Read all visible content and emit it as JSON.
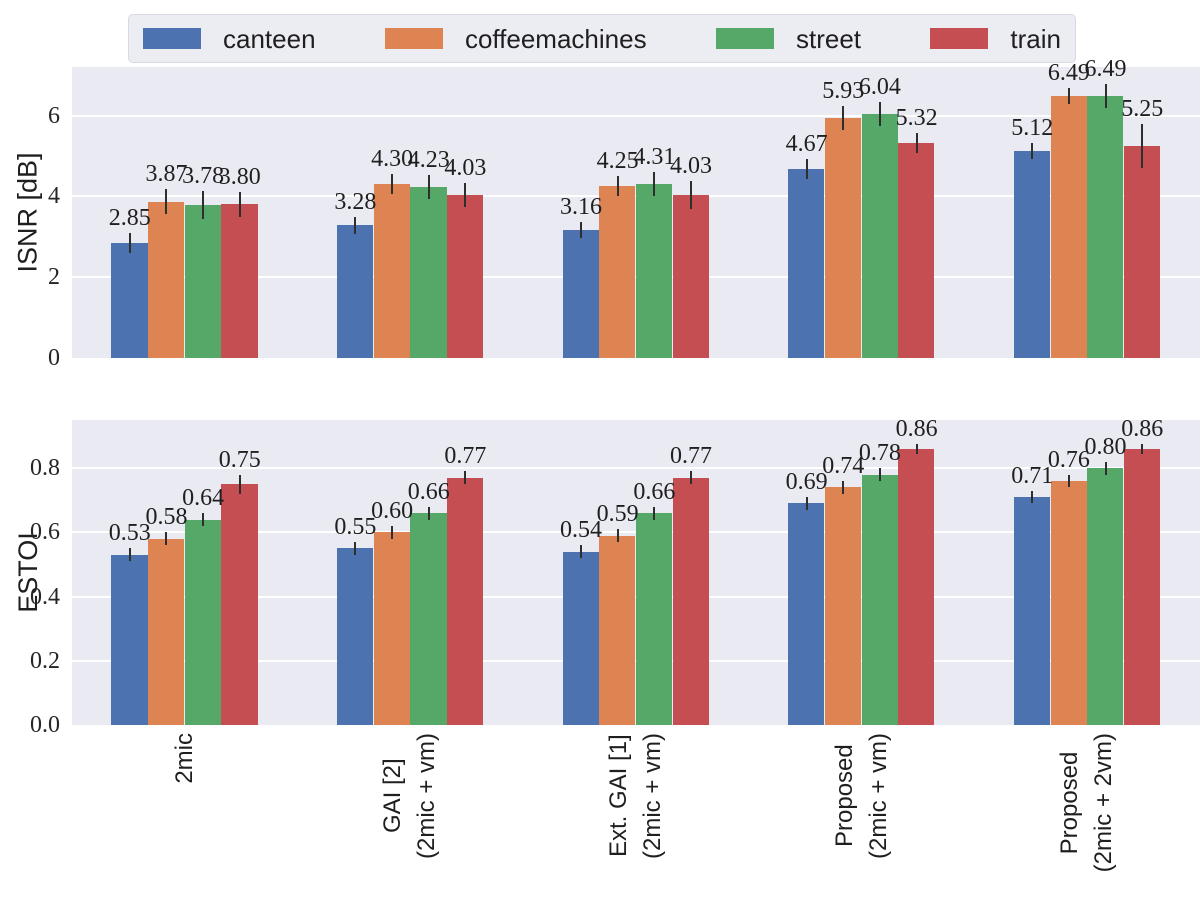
{
  "legend": {
    "items": [
      {
        "label": "canteen",
        "color": "#4C72B0"
      },
      {
        "label": "coffeemachines",
        "color": "#DD8452"
      },
      {
        "label": "street",
        "color": "#55A868"
      },
      {
        "label": "train",
        "color": "#C44E52"
      }
    ]
  },
  "chart_data": [
    {
      "type": "bar",
      "id": "isnr",
      "title": "",
      "ylabel": "ISNR [dB]",
      "ylim": [
        0,
        7.2
      ],
      "grid": true,
      "legend_position": "top",
      "ytick_values": [
        0,
        2,
        4,
        6
      ],
      "ytick_labels": [
        "0",
        "2",
        "4",
        "6"
      ],
      "categories": [
        "2mic",
        "GAI [2]\n(2mic + vm)",
        "Ext. GAI [1]\n(2mic + vm)",
        "Proposed\n(2mic + vm)",
        "Proposed\n(2mic + 2vm)"
      ],
      "bar_label_decimals": 2,
      "series": [
        {
          "name": "canteen",
          "color": "#4C72B0",
          "values": [
            2.85,
            3.28,
            3.16,
            4.67,
            5.12
          ],
          "errors": [
            0.25,
            0.2,
            0.2,
            0.25,
            0.2
          ]
        },
        {
          "name": "coffeemachines",
          "color": "#DD8452",
          "values": [
            3.87,
            4.3,
            4.25,
            5.93,
            6.49
          ],
          "errors": [
            0.3,
            0.25,
            0.25,
            0.3,
            0.2
          ]
        },
        {
          "name": "street",
          "color": "#55A868",
          "values": [
            3.78,
            4.23,
            4.31,
            6.04,
            6.49
          ],
          "errors": [
            0.35,
            0.3,
            0.3,
            0.3,
            0.3
          ]
        },
        {
          "name": "train",
          "color": "#C44E52",
          "values": [
            3.8,
            4.03,
            4.03,
            5.32,
            5.25
          ],
          "errors": [
            0.3,
            0.3,
            0.35,
            0.25,
            0.55
          ]
        }
      ]
    },
    {
      "type": "bar",
      "id": "estoi",
      "title": "",
      "ylabel": "ESTOI",
      "ylim": [
        0,
        0.95
      ],
      "grid": true,
      "legend_position": "top",
      "ytick_values": [
        0,
        0.2,
        0.4,
        0.6,
        0.8
      ],
      "ytick_labels": [
        "0.0",
        "0.2",
        "0.4",
        "0.6",
        "0.8"
      ],
      "categories": [
        "2mic",
        "GAI [2]\n(2mic + vm)",
        "Ext. GAI [1]\n(2mic + vm)",
        "Proposed\n(2mic + vm)",
        "Proposed\n(2mic + 2vm)"
      ],
      "bar_label_decimals": 2,
      "series": [
        {
          "name": "canteen",
          "color": "#4C72B0",
          "values": [
            0.53,
            0.55,
            0.54,
            0.69,
            0.71
          ],
          "errors": [
            0.02,
            0.02,
            0.02,
            0.02,
            0.02
          ]
        },
        {
          "name": "coffeemachines",
          "color": "#DD8452",
          "values": [
            0.58,
            0.6,
            0.59,
            0.74,
            0.76
          ],
          "errors": [
            0.02,
            0.02,
            0.02,
            0.02,
            0.02
          ]
        },
        {
          "name": "street",
          "color": "#55A868",
          "values": [
            0.64,
            0.66,
            0.66,
            0.78,
            0.8
          ],
          "errors": [
            0.02,
            0.02,
            0.02,
            0.02,
            0.02
          ]
        },
        {
          "name": "train",
          "color": "#C44E52",
          "values": [
            0.75,
            0.77,
            0.77,
            0.86,
            0.86
          ],
          "errors": [
            0.03,
            0.02,
            0.02,
            0.015,
            0.015
          ]
        }
      ]
    }
  ]
}
